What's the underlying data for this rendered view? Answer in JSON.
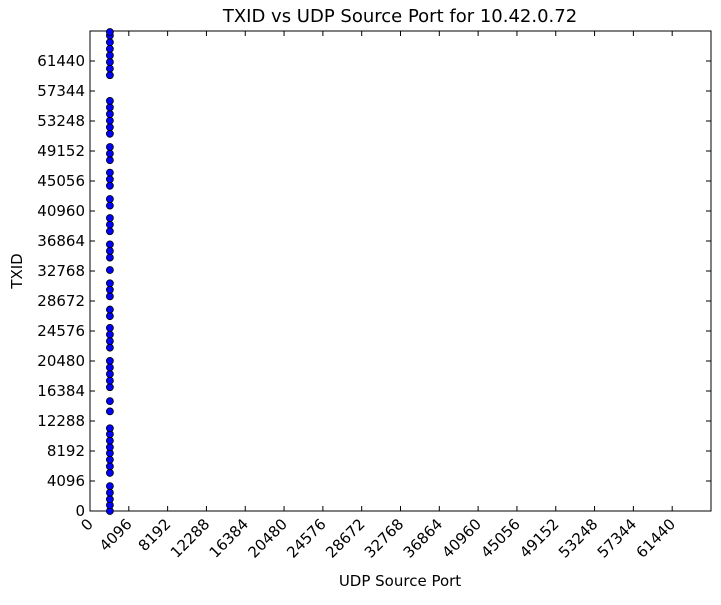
{
  "chart_data": {
    "type": "scatter",
    "title": "TXID vs UDP Source Port for 10.42.0.72",
    "x_label": "UDP Source Port",
    "y_label": "TXID",
    "color": "#0000ff",
    "x": [
      2100,
      2100,
      2100,
      2100,
      2100,
      2100,
      2100,
      2100,
      2100,
      2100,
      2100,
      2100,
      2100,
      2100,
      2100,
      2100,
      2100,
      2100,
      2100,
      2100,
      2100,
      2100,
      2100,
      2100,
      2100,
      2100,
      2100,
      2100,
      2100,
      2100,
      2100,
      2100,
      2100,
      2100,
      2100,
      2100,
      2100,
      2100,
      2100,
      2100,
      2100,
      2100,
      2100,
      2100,
      2100,
      2100,
      2100,
      2100,
      2100,
      2100,
      2100,
      2100,
      2100,
      2100,
      2100,
      2100,
      2100,
      2100
    ],
    "y": [
      0,
      800,
      1600,
      2500,
      3400,
      5200,
      6100,
      7000,
      7900,
      8700,
      9600,
      10500,
      11300,
      13600,
      15000,
      16900,
      17800,
      18700,
      19600,
      20500,
      22300,
      23200,
      24100,
      25000,
      26600,
      27500,
      29300,
      30200,
      31100,
      32900,
      34600,
      35500,
      36400,
      38200,
      39100,
      40000,
      41700,
      42600,
      44400,
      45300,
      46200,
      47900,
      48800,
      49700,
      51500,
      52400,
      53300,
      54200,
      55100,
      56000,
      59500,
      60400,
      61300,
      62200,
      63100,
      64000,
      64900,
      65400
    ],
    "xlim": [
      0,
      65536
    ],
    "ylim": [
      0,
      65536
    ],
    "xticks": [
      0,
      4096,
      8192,
      12288,
      16384,
      20480,
      24576,
      28672,
      32768,
      36864,
      40960,
      45056,
      49152,
      53248,
      57344,
      61440
    ],
    "yticks": [
      0,
      4096,
      8192,
      12288,
      16384,
      20480,
      24576,
      28672,
      32768,
      36864,
      40960,
      45056,
      49152,
      53248,
      57344,
      61440
    ],
    "grid": false
  }
}
